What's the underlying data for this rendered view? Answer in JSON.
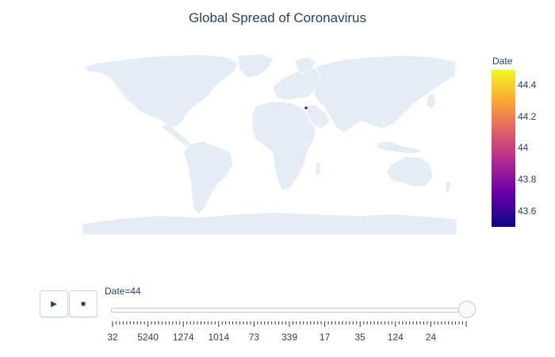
{
  "title": "Global Spread of Coronavirus",
  "colors": {
    "land": "#e5ecf6",
    "text": "#2a3f5f",
    "marker": "#0d0887"
  },
  "chart_data": {
    "type": "choropleth-map",
    "title": "Global Spread of Coronavirus",
    "colorbar": {
      "title": "Date",
      "range": [
        43.5,
        44.5
      ],
      "ticks": [
        "44.4",
        "44.2",
        "44",
        "43.8",
        "43.6"
      ],
      "colorscale": [
        "#0d0887",
        "#6a00a8",
        "#b12a90",
        "#e16462",
        "#fca636",
        "#f0f921"
      ]
    },
    "highlighted_point": {
      "location": "Middle East",
      "value": 44
    }
  },
  "controls": {
    "play_icon": "play-icon",
    "stop_icon": "stop-icon",
    "play_symbol": "▶",
    "stop_symbol": "■"
  },
  "slider": {
    "current_label": "Date=44",
    "tick_labels": [
      "32",
      "5240",
      "1274",
      "1014",
      "73",
      "339",
      "17",
      "35",
      "124",
      "24"
    ],
    "value_fraction": 1.0
  }
}
